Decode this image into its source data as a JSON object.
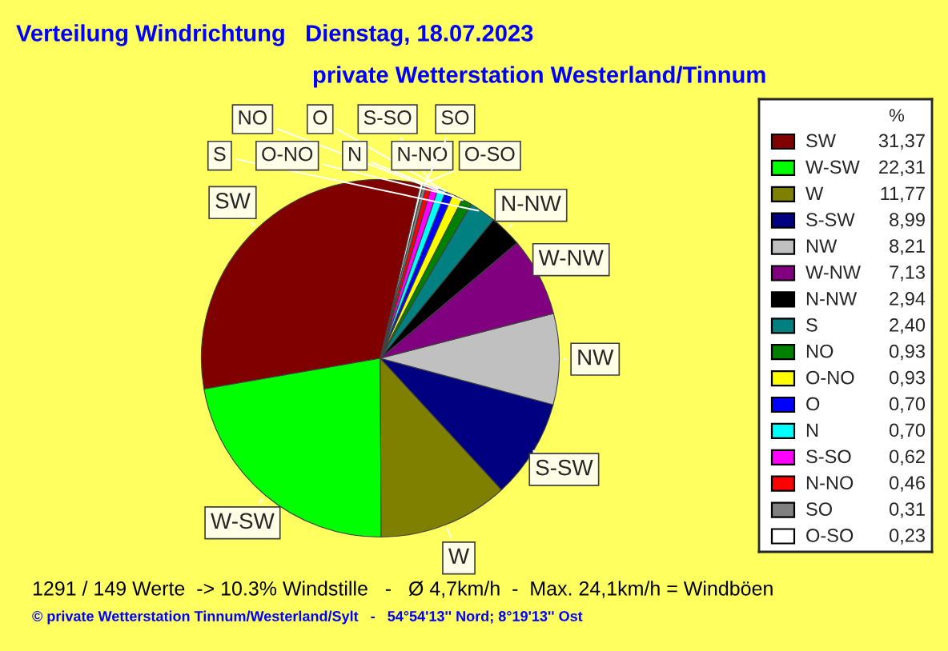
{
  "chart_data": {
    "type": "pie",
    "title": "Verteilung Windrichtung   Dienstag, 18.07.2023",
    "subtitle": "private Wetterstation Westerland/Tinnum",
    "legend_title": "%",
    "categories": [
      "SW",
      "W-SW",
      "W",
      "S-SW",
      "NW",
      "W-NW",
      "N-NW",
      "S",
      "NO",
      "O-NO",
      "O",
      "N",
      "S-SO",
      "N-NO",
      "SO",
      "O-SO"
    ],
    "values": [
      31.37,
      22.31,
      11.77,
      8.99,
      8.21,
      7.13,
      2.94,
      2.4,
      0.93,
      0.93,
      0.7,
      0.7,
      0.62,
      0.46,
      0.31,
      0.23
    ],
    "colors": [
      "#800000",
      "#00ff00",
      "#808000",
      "#000080",
      "#c0c0c0",
      "#800080",
      "#000000",
      "#008080",
      "#008000",
      "#ffff00",
      "#0000ff",
      "#00ffff",
      "#ff00ff",
      "#ff0000",
      "#808080",
      "#ffffff"
    ],
    "value_labels": [
      "31,37",
      "22,31",
      "11,77",
      "8,99",
      "8,21",
      "7,13",
      "2,94",
      "2,40",
      "0,93",
      "0,93",
      "0,70",
      "0,70",
      "0,62",
      "0,46",
      "0,31",
      "0,23"
    ],
    "legend": "right",
    "annotations": [
      "1291 / 149 Werte  -> 10.3% Windstille   -   Ø 4,7km/h  -  Max. 24,1km/h = Windböen",
      "© private Wetterstation Tinnum/Westerland/Sylt   -   54°54'13'' Nord; 8°19'13'' Ost"
    ]
  }
}
